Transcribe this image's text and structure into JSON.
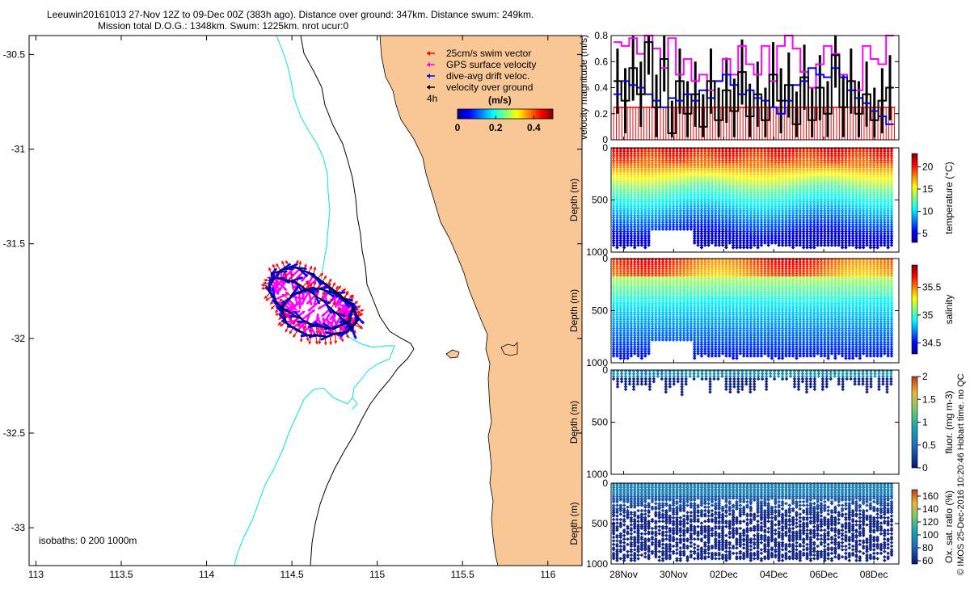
{
  "header": {
    "line1": "Leeuwin20161013 27-Nov 12Z to 09-Dec 00Z (383h ago). Distance over ground: 347km. Distance swum: 249km.",
    "line2": "Mission total D.O.G.: 1348km. Swum: 1225km. nrot ucur:0"
  },
  "side_label": "© IMOS 25-Dec-2016 10:20:46 Hobart time. no QC",
  "chart_data": [
    {
      "type": "map",
      "panel": "glider-track-map",
      "xticks": [
        "113",
        "113.5",
        "114",
        "114.5",
        "115",
        "115.5",
        "116"
      ],
      "xtick_values": [
        113,
        113.5,
        114,
        114.5,
        115,
        115.5,
        116
      ],
      "yticks": [
        "-30.5",
        "-31",
        "-31.5",
        "-32",
        "-32.5",
        "-33"
      ],
      "ytick_values": [
        -30.5,
        -31,
        -31.5,
        -32,
        -32.5,
        -33
      ],
      "xlim": [
        112.96,
        116.2
      ],
      "ylim": [
        -33.2,
        -30.4
      ],
      "legend": [
        {
          "label": "25cm/s swim vector",
          "color": "#ff0000"
        },
        {
          "label": "GPS surface velocity",
          "color": "#ff00ff"
        },
        {
          "label": "dive-avg drift veloc.",
          "color": "#0000ff"
        },
        {
          "label": "velocity over ground",
          "color": "#000000"
        }
      ],
      "legend_placement": "top-right",
      "colorbar": {
        "title": "(m/s)",
        "ticks": [
          "0",
          "0.2",
          "0.4"
        ],
        "tick_values": [
          0,
          0.2,
          0.4
        ],
        "range": [
          0,
          0.5
        ]
      },
      "interval_label": "4h",
      "isobaths_label": "isobaths: 0   200  1000m",
      "land_color": "#f9c795",
      "isobath_200_color": "#000000",
      "isobath_1000_color": "#00e5ee",
      "track_lon": [
        114.38,
        114.5,
        114.62,
        114.74,
        114.85,
        114.89,
        114.83,
        114.7,
        114.58,
        114.47,
        114.44,
        114.5,
        114.62,
        114.76,
        114.86,
        114.84,
        114.74,
        114.62,
        114.5,
        114.42,
        114.36,
        114.4,
        114.52,
        114.68,
        114.8,
        114.86
      ],
      "track_lat": [
        -31.66,
        -31.62,
        -31.66,
        -31.74,
        -31.82,
        -31.9,
        -31.96,
        -31.99,
        -31.98,
        -31.92,
        -31.84,
        -31.77,
        -31.73,
        -31.76,
        -31.83,
        -31.91,
        -31.95,
        -31.93,
        -31.87,
        -31.82,
        -31.74,
        -31.68,
        -31.7,
        -31.8,
        -31.9,
        -31.95
      ]
    },
    {
      "type": "line",
      "panel": "velocity-magnitude",
      "ylabel": "velocity magnitude (m/s)",
      "ylim": [
        0,
        0.8
      ],
      "yticks": [
        "0",
        "0.2",
        "0.4",
        "0.6",
        "0.8"
      ],
      "ytick_values": [
        0,
        0.2,
        0.4,
        0.6,
        0.8
      ],
      "xlim": [
        0,
        11.5
      ],
      "swim_speed": 0.25,
      "series": [
        {
          "color": "#ff00ff",
          "values": [
            0.75,
            0.72,
            0.78,
            0.66,
            0.8,
            0.7,
            0.55,
            0.78,
            0.5,
            0.62,
            0.45,
            0.5,
            0.38,
            0.45,
            0.62,
            0.5,
            0.72,
            0.58,
            0.5,
            0.72,
            0.45,
            0.72,
            0.8,
            0.7,
            0.52,
            0.4,
            0.58,
            0.72,
            0.66,
            0.5,
            0.45,
            0.38,
            0.72,
            0.62,
            0.58,
            0.8
          ]
        },
        {
          "color": "#0000ff",
          "values": [
            0.35,
            0.45,
            0.42,
            0.4,
            0.35,
            0.3,
            0.25,
            0.32,
            0.3,
            0.35,
            0.3,
            0.38,
            0.32,
            0.45,
            0.5,
            0.42,
            0.35,
            0.38,
            0.32,
            0.3,
            0.25,
            0.2,
            0.3,
            0.42,
            0.45,
            0.55,
            0.5,
            0.48,
            0.55,
            0.48,
            0.38,
            0.32,
            0.28,
            0.22,
            0.18,
            0.12
          ]
        },
        {
          "color": "#000000",
          "values": [
            0.45,
            0.3,
            0.55,
            0.35,
            0.75,
            0.25,
            0.62,
            0.05,
            0.45,
            0.2,
            0.35,
            0.1,
            0.45,
            0.15,
            0.38,
            0.22,
            0.52,
            0.18,
            0.35,
            0.15,
            0.5,
            0.3,
            0.42,
            0.12,
            0.48,
            0.15,
            0.4,
            0.2,
            0.65,
            0.25,
            0.45,
            0.2,
            0.35,
            0.15,
            0.3,
            0.4
          ]
        }
      ]
    },
    {
      "type": "scatter",
      "panel": "temperature-section",
      "ylabel": "Depth (m)",
      "ylim": [
        1000,
        0
      ],
      "yticks": [
        "0",
        "500",
        "1000"
      ],
      "ytick_values": [
        0,
        500,
        1000
      ],
      "colorbar": {
        "title": "temperature (°C)",
        "ticks": [
          "5",
          "10",
          "15",
          "20"
        ],
        "tick_values": [
          5,
          10,
          15,
          20
        ],
        "range": [
          3,
          23
        ]
      },
      "profile": {
        "surface": 22,
        "mid": 14,
        "deep": 4
      }
    },
    {
      "type": "scatter",
      "panel": "salinity-section",
      "ylabel": "Depth (m)",
      "ylim": [
        1000,
        0
      ],
      "yticks": [
        "0",
        "500",
        "1000"
      ],
      "ytick_values": [
        0,
        500,
        1000
      ],
      "colorbar": {
        "title": "salinity",
        "ticks": [
          "34.5",
          "35",
          "35.5"
        ],
        "tick_values": [
          34.5,
          35,
          35.5
        ],
        "range": [
          34.3,
          35.9
        ]
      }
    },
    {
      "type": "scatter",
      "panel": "fluorescence-section",
      "ylabel": "Depth (m)",
      "ylim": [
        1000,
        0
      ],
      "yticks": [
        "0",
        "500",
        "1000"
      ],
      "ytick_values": [
        0,
        500,
        1000
      ],
      "colorbar": {
        "title": "fluor. (mg m-3)",
        "ticks": [
          "0",
          "0.5",
          "1",
          "1.5",
          "2"
        ],
        "tick_values": [
          0,
          0.5,
          1,
          1.5,
          2
        ],
        "range": [
          0,
          2
        ]
      }
    },
    {
      "type": "scatter",
      "panel": "oxygen-section",
      "ylabel": "Depth (m)",
      "ylim": [
        1000,
        0
      ],
      "yticks": [
        "0",
        "500",
        "1000"
      ],
      "ytick_values": [
        0,
        500,
        1000
      ],
      "colorbar": {
        "title": "Ox. sat. ratio (%)",
        "ticks": [
          "60",
          "80",
          "100",
          "120",
          "140",
          "160"
        ],
        "tick_values": [
          60,
          80,
          100,
          120,
          140,
          160
        ],
        "range": [
          55,
          170
        ]
      },
      "xticks": [
        "28Nov",
        "30Nov",
        "02Dec",
        "04Dec",
        "06Dec",
        "08Dec"
      ],
      "xtick_values": [
        0.5,
        2.5,
        4.5,
        6.5,
        8.5,
        10.5
      ],
      "xlim": [
        0,
        11.5
      ]
    }
  ]
}
